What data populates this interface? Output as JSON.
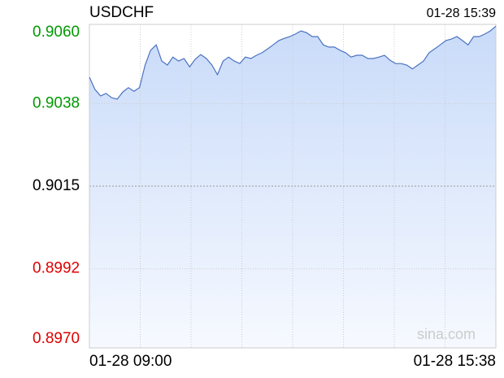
{
  "chart_data": {
    "type": "area",
    "title": "USDCHF",
    "timestamp": "01-28 15:39",
    "watermark": "sina.com",
    "x_labels": [
      "01-28 09:00",
      "01-28 15:38"
    ],
    "x_divisions": 8,
    "color": "#4a72c0",
    "ylim": [
      0.897,
      0.906
    ],
    "yticks": [
      {
        "value": 0.906,
        "label": "0.9060"
      },
      {
        "value": 0.9038,
        "label": "0.9038"
      },
      {
        "value": 0.9015,
        "label": "0.9015"
      },
      {
        "value": 0.8992,
        "label": "0.8992"
      },
      {
        "value": 0.897,
        "label": "0.8970"
      }
    ],
    "ytick_colors": [
      "#009900",
      "#009900",
      "#000000",
      "#dd0000",
      "#dd0000"
    ],
    "grid": true,
    "values": [
      0.90453,
      0.90419,
      0.90401,
      0.90408,
      0.90396,
      0.90392,
      0.90412,
      0.90424,
      0.90414,
      0.90424,
      0.90487,
      0.90528,
      0.90543,
      0.90498,
      0.90487,
      0.90509,
      0.90498,
      0.90505,
      0.90482,
      0.90503,
      0.90516,
      0.90505,
      0.90487,
      0.9046,
      0.90498,
      0.90509,
      0.90498,
      0.90491,
      0.90509,
      0.90505,
      0.90514,
      0.90521,
      0.90532,
      0.90543,
      0.90555,
      0.90561,
      0.90566,
      0.90573,
      0.90582,
      0.90577,
      0.90566,
      0.90566,
      0.90543,
      0.90537,
      0.90537,
      0.90528,
      0.90521,
      0.90509,
      0.90514,
      0.90514,
      0.90505,
      0.90505,
      0.90509,
      0.90514,
      0.905,
      0.90491,
      0.90491,
      0.90487,
      0.90476,
      0.90487,
      0.90498,
      0.90521,
      0.90532,
      0.90543,
      0.90555,
      0.90559,
      0.90566,
      0.90555,
      0.90543,
      0.90566,
      0.90566,
      0.90573,
      0.90582,
      0.90595
    ]
  }
}
